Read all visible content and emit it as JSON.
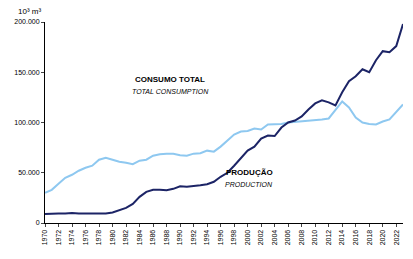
{
  "chart_data": {
    "type": "line",
    "y_label": "10³ m³",
    "x": [
      1970,
      1971,
      1972,
      1973,
      1974,
      1975,
      1976,
      1977,
      1978,
      1979,
      1980,
      1981,
      1982,
      1983,
      1984,
      1985,
      1986,
      1987,
      1988,
      1989,
      1990,
      1991,
      1992,
      1993,
      1994,
      1995,
      1996,
      1997,
      1998,
      1999,
      2000,
      2001,
      2002,
      2003,
      2004,
      2005,
      2006,
      2007,
      2008,
      2009,
      2010,
      2011,
      2012,
      2013,
      2014,
      2015,
      2016,
      2017,
      2018,
      2019,
      2020,
      2021,
      2022,
      2023
    ],
    "series": [
      {
        "name": "CONSUMO TOTAL",
        "color": "#8ec8f0",
        "values": [
          30000,
          33000,
          39000,
          45000,
          48000,
          52000,
          55000,
          57000,
          63000,
          65000,
          63000,
          61000,
          60000,
          58500,
          62000,
          63000,
          67000,
          68500,
          69000,
          69000,
          67500,
          67000,
          69000,
          69500,
          72000,
          71000,
          76000,
          82000,
          88000,
          91000,
          91500,
          94000,
          93000,
          98000,
          98500,
          98500,
          100000,
          100500,
          101000,
          102000,
          102000,
          103000,
          104000,
          113000,
          121000,
          115000,
          105000,
          100000,
          98500,
          98000,
          101000,
          103000,
          110000,
          118000
        ]
      },
      {
        "name": "PRODUÇÃO",
        "color": "#1c2466",
        "values": [
          9000,
          9500,
          9500,
          9500,
          10000,
          9500,
          9500,
          9000,
          9000,
          9500,
          10500,
          12500,
          15000,
          19000,
          26000,
          31000,
          33000,
          33000,
          32500,
          34000,
          36500,
          36000,
          36500,
          37500,
          38500,
          41000,
          46000,
          50000,
          57000,
          64000,
          72000,
          76000,
          84000,
          87000,
          86500,
          95000,
          100000,
          102000,
          106000,
          113000,
          119000,
          122000,
          120000,
          117000,
          130000,
          141000,
          146000,
          153000,
          150000,
          162000,
          171000,
          170000,
          176000,
          198000
        ]
      }
    ],
    "annotations": [
      "TOTAL CONSUMPTION",
      "PRODUCTION"
    ],
    "xlim": [
      1970,
      2023
    ],
    "xticks": [
      1970,
      1972,
      1974,
      1976,
      1978,
      1980,
      1982,
      1984,
      1986,
      1988,
      1990,
      1992,
      1994,
      1996,
      1998,
      2000,
      2002,
      2004,
      2006,
      2008,
      2010,
      2012,
      2014,
      2016,
      2018,
      2020,
      2022
    ],
    "ylim": [
      0,
      200000
    ],
    "yticks": [
      0,
      {
        "value": 50000,
        "label": "50.000"
      },
      {
        "value": 100000,
        "label": "100.000"
      },
      {
        "value": 150000,
        "label": "150.000"
      },
      {
        "value": 200000,
        "label": "200.000"
      }
    ],
    "grid": false
  }
}
